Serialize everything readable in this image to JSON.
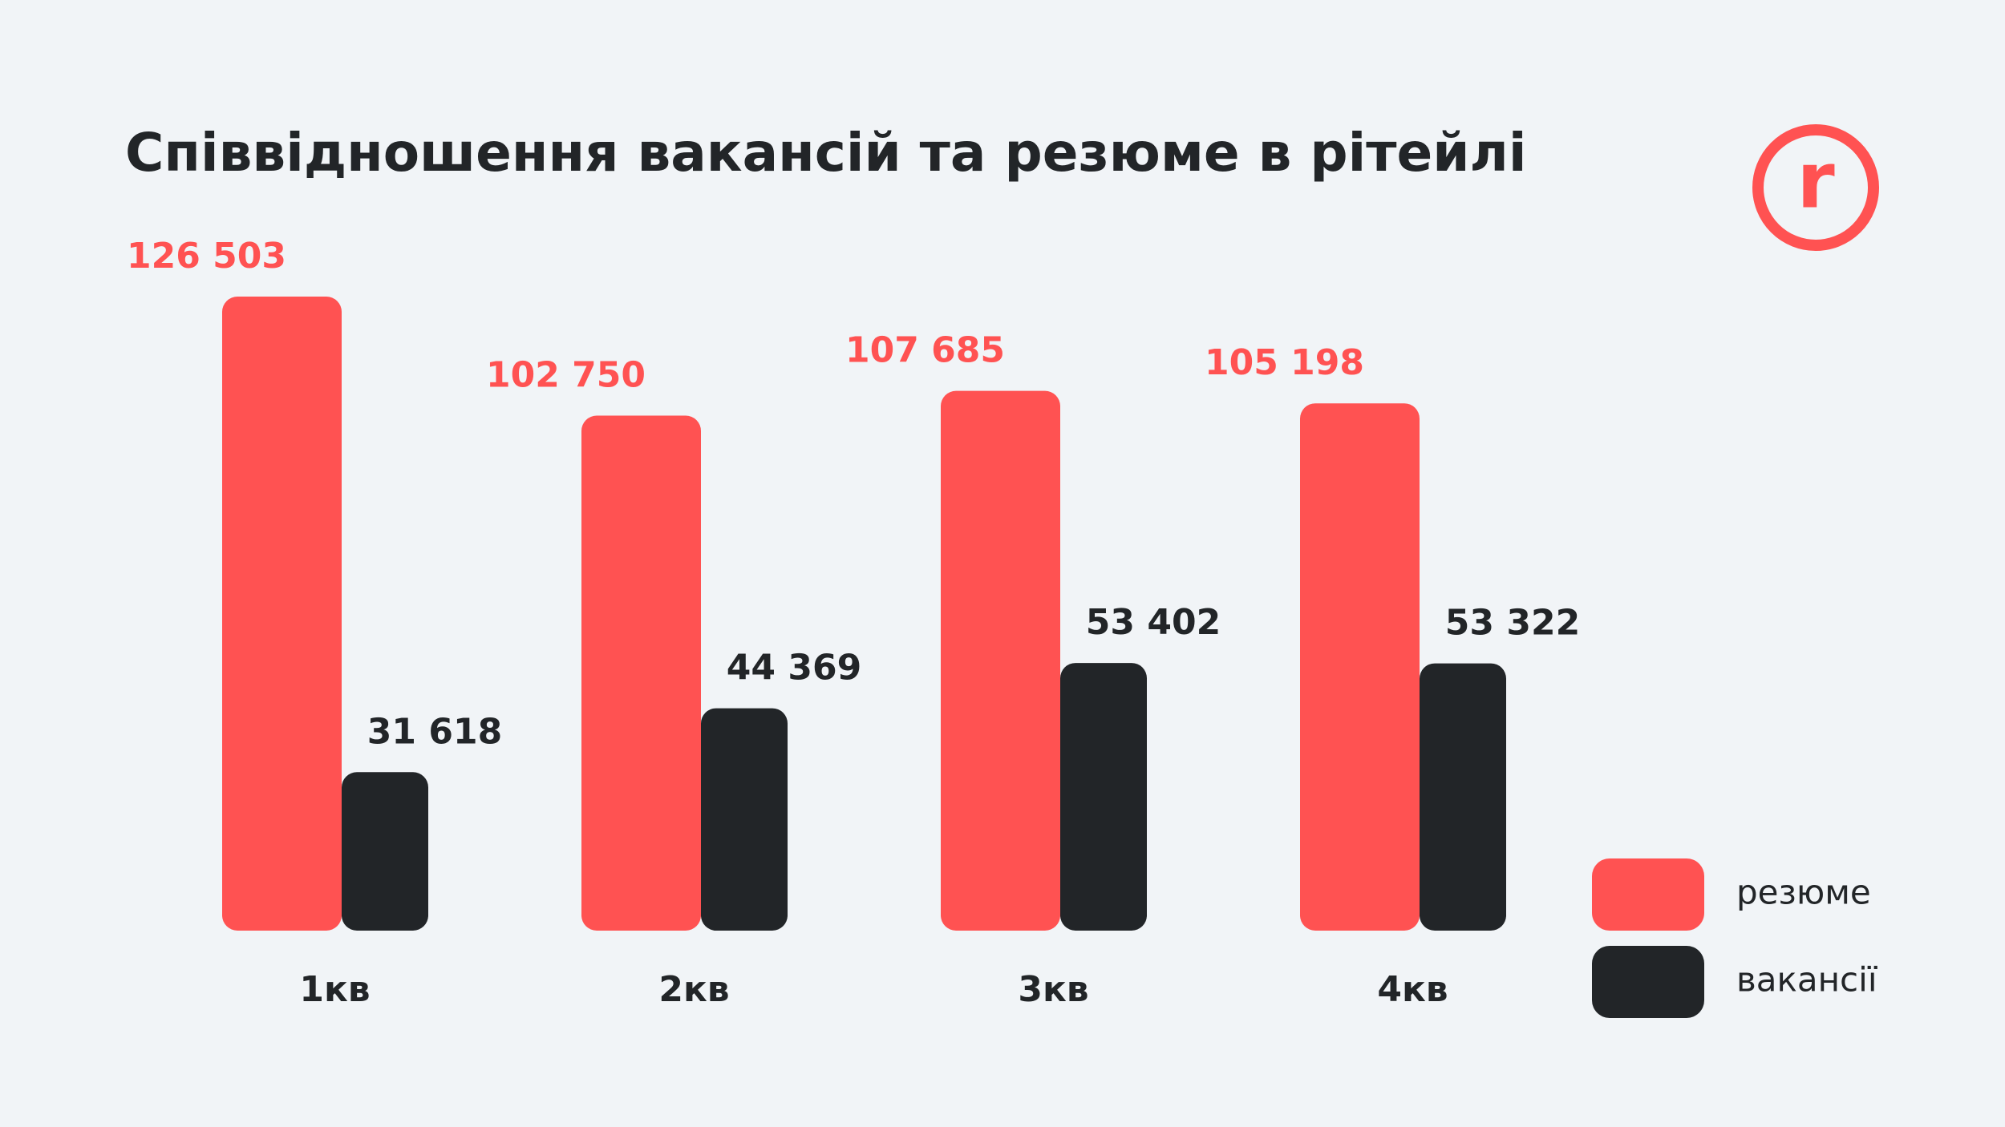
{
  "chart_data": {
    "type": "bar",
    "title": "Співвідношення вакансій та резюме в рітейлі",
    "logo": "r",
    "categories": [
      "1кв",
      "2кв",
      "3кв",
      "4кв"
    ],
    "series": [
      {
        "name": "резюме",
        "color": "#ff5252",
        "values": [
          126503,
          102750,
          107685,
          105198
        ],
        "value_labels": [
          "126 503",
          "102 750",
          "107 685",
          "105 198"
        ]
      },
      {
        "name": "вакансії",
        "color": "#222528",
        "values": [
          31618,
          44369,
          53402,
          53322
        ],
        "value_labels": [
          "31 618",
          "44 369",
          "53 402",
          "53 322"
        ]
      }
    ]
  }
}
